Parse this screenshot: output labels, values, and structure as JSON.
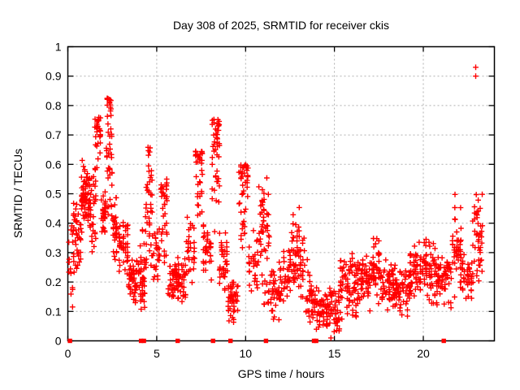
{
  "window": {
    "background": "#ffffff"
  },
  "chart_data": {
    "type": "scatter",
    "title": "Day 308 of 2025, SRMTID for receiver ckis",
    "xlabel": "GPS time / hours",
    "ylabel": "SRMTID / TECUs",
    "xlim": [
      0,
      24
    ],
    "ylim": [
      0,
      1
    ],
    "xticks": [
      0,
      5,
      10,
      15,
      20
    ],
    "yticks": [
      0,
      0.1,
      0.2,
      0.3,
      0.4,
      0.5,
      0.6,
      0.7,
      0.8,
      0.9,
      1
    ],
    "grid": true,
    "legend_position": "none",
    "colors": {
      "points": "#ff0000",
      "grid": "#b0b0b0",
      "axis": "#000000",
      "text": "#000000"
    },
    "series": [
      {
        "name": "SRMTID",
        "marker": "plus",
        "color": "#ff0000",
        "clusters": [
          [
            0.0,
            0.3,
            0.11,
            0.42,
            15,
            "spread"
          ],
          [
            0.3,
            0.75,
            0.2,
            0.5,
            40,
            "mid"
          ],
          [
            0.75,
            1.3,
            0.33,
            0.62,
            75,
            "mid"
          ],
          [
            1.3,
            1.6,
            0.3,
            0.6,
            25,
            "spread"
          ],
          [
            1.5,
            1.85,
            0.55,
            0.76,
            28,
            "top"
          ],
          [
            1.85,
            2.15,
            0.35,
            0.55,
            28,
            "mid"
          ],
          [
            2.15,
            2.5,
            0.42,
            0.72,
            30,
            "spread"
          ],
          [
            2.2,
            2.45,
            0.7,
            0.825,
            18,
            "top"
          ],
          [
            2.5,
            2.85,
            0.26,
            0.5,
            28,
            "mid"
          ],
          [
            2.85,
            3.4,
            0.22,
            0.42,
            45,
            "mid"
          ],
          [
            3.4,
            3.75,
            0.14,
            0.3,
            30,
            "mid"
          ],
          [
            3.75,
            4.35,
            0.09,
            0.28,
            55,
            "mid"
          ],
          [
            4.05,
            4.35,
            0.26,
            0.4,
            8,
            "spread"
          ],
          [
            4.35,
            4.8,
            0.2,
            0.6,
            35,
            "mid"
          ],
          [
            4.5,
            4.75,
            0.55,
            0.67,
            10,
            "spread"
          ],
          [
            4.8,
            5.2,
            0.18,
            0.4,
            25,
            "mid"
          ],
          [
            5.2,
            5.6,
            0.25,
            0.55,
            35,
            "top"
          ],
          [
            5.6,
            6.65,
            0.12,
            0.3,
            80,
            "mid"
          ],
          [
            6.65,
            7.15,
            0.18,
            0.46,
            30,
            "mid"
          ],
          [
            7.15,
            7.6,
            0.28,
            0.645,
            35,
            "top"
          ],
          [
            7.6,
            8.1,
            0.18,
            0.42,
            35,
            "mid"
          ],
          [
            8.1,
            8.55,
            0.35,
            0.755,
            45,
            "top"
          ],
          [
            8.5,
            9.0,
            0.15,
            0.4,
            35,
            "mid"
          ],
          [
            9.0,
            9.6,
            0.05,
            0.25,
            45,
            "mid"
          ],
          [
            9.6,
            10.15,
            0.25,
            0.6,
            45,
            "top"
          ],
          [
            10.15,
            10.7,
            0.14,
            0.38,
            30,
            "mid"
          ],
          [
            10.7,
            11.35,
            0.25,
            0.56,
            45,
            "mid"
          ],
          [
            10.9,
            11.45,
            0.12,
            0.25,
            15,
            "spread"
          ],
          [
            11.45,
            12.1,
            0.06,
            0.3,
            40,
            "mid"
          ],
          [
            12.1,
            12.55,
            0.12,
            0.35,
            30,
            "mid"
          ],
          [
            12.55,
            13.05,
            0.15,
            0.47,
            40,
            "mid"
          ],
          [
            13.05,
            13.35,
            0.12,
            0.38,
            20,
            "mid"
          ],
          [
            13.35,
            13.95,
            0.03,
            0.28,
            40,
            "mid"
          ],
          [
            13.95,
            15.3,
            0.02,
            0.2,
            100,
            "mid"
          ],
          [
            15.3,
            16.35,
            0.06,
            0.31,
            80,
            "mid"
          ],
          [
            16.35,
            17.15,
            0.1,
            0.32,
            55,
            "mid"
          ],
          [
            17.15,
            17.65,
            0.12,
            0.375,
            40,
            "mid"
          ],
          [
            17.65,
            18.35,
            0.1,
            0.3,
            50,
            "mid"
          ],
          [
            18.35,
            19.15,
            0.08,
            0.26,
            55,
            "mid"
          ],
          [
            19.15,
            20.0,
            0.12,
            0.35,
            60,
            "mid"
          ],
          [
            20.0,
            20.6,
            0.12,
            0.38,
            45,
            "mid"
          ],
          [
            20.6,
            21.6,
            0.1,
            0.33,
            70,
            "mid"
          ],
          [
            21.6,
            22.15,
            0.1,
            0.52,
            45,
            "mid"
          ],
          [
            22.15,
            22.75,
            0.12,
            0.3,
            35,
            "mid"
          ],
          [
            22.75,
            23.35,
            0.15,
            0.53,
            45,
            "mid"
          ]
        ],
        "points": [
          [
            14.8,
            0.01
          ],
          [
            22.95,
            0.93
          ],
          [
            22.95,
            0.9
          ]
        ]
      },
      {
        "name": "zero-line-markers",
        "marker": "filled-square",
        "color": "#ff0000",
        "points": [
          [
            0.12,
            0
          ],
          [
            4.12,
            0
          ],
          [
            4.28,
            0
          ],
          [
            6.18,
            0
          ],
          [
            8.17,
            0
          ],
          [
            9.15,
            0
          ],
          [
            11.15,
            0
          ],
          [
            13.85,
            0
          ],
          [
            13.97,
            0
          ],
          [
            21.15,
            0
          ]
        ]
      }
    ]
  }
}
